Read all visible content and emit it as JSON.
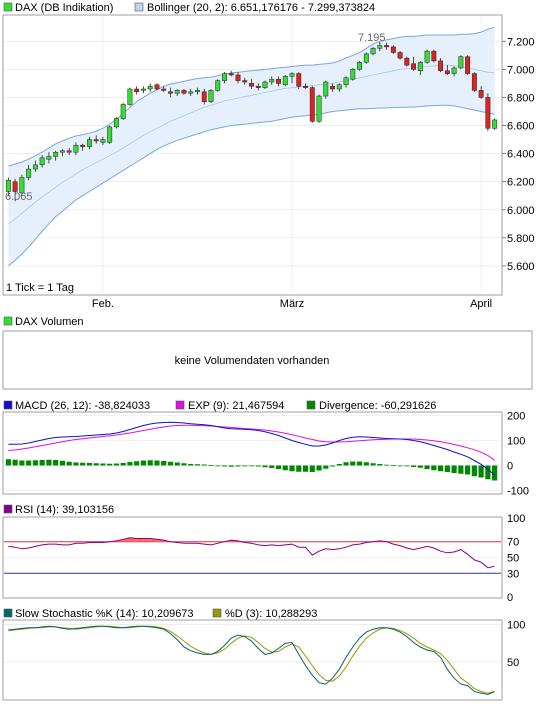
{
  "colors": {
    "up": "#33dd33",
    "down": "#dd2222",
    "bollinger_fill": "#e6f0fc",
    "bollinger_line": "#7aa6dd",
    "bollinger_mid": "#a8c6ee",
    "grid": "#e4e4e4",
    "macd": "#1010cc",
    "exp": "#dd10dd",
    "divergence": "#008800",
    "rsi": "#880088",
    "rsi_70": "#dd3333",
    "rsi_30": "#3333aa",
    "rsi_fill": "#ff6666",
    "stoch_k": "#006666",
    "stoch_d": "#999900"
  },
  "price_panel": {
    "legend_dax": "DAX (DB Indikation)",
    "legend_bollinger": "Bollinger (20, 2): 6.651,176176 - 7.299,373824",
    "tick_note": "1 Tick = 1 Tag",
    "high_label": "7.195",
    "low_label": "6.065",
    "x_labels": [
      "Feb.",
      "März",
      "April"
    ]
  },
  "volume_panel": {
    "legend": "DAX Volumen",
    "message": "keine Volumendaten vorhanden"
  },
  "macd_panel": {
    "legend_macd": "MACD (26, 12): -38,824033",
    "legend_exp": "EXP (9): 21,467594",
    "legend_div": "Divergence: -60,291626"
  },
  "rsi_panel": {
    "legend": "RSI (14): 39,103156"
  },
  "stoch_panel": {
    "legend_k": "Slow Stochastic %K (14): 10,209673",
    "legend_d": "%D (3): 10,288293"
  },
  "chart_data": [
    {
      "type": "candlestick",
      "title": "DAX (DB Indikation)",
      "y_ticks": [
        5600,
        5800,
        6000,
        6200,
        6400,
        6600,
        6800,
        7000,
        7200
      ],
      "y_tick_labels": [
        "5.600",
        "5.800",
        "6.000",
        "6.200",
        "6.400",
        "6.600",
        "6.800",
        "7.000",
        "7.200"
      ],
      "ylim": [
        5400,
        7380
      ],
      "x_tick_labels": [
        "Feb.",
        "März",
        "April"
      ],
      "x_tick_index": [
        14,
        42,
        70
      ],
      "ohlc": [
        [
          6130,
          6230,
          6100,
          6210
        ],
        [
          6200,
          6220,
          6060,
          6130
        ],
        [
          6120,
          6250,
          6100,
          6230
        ],
        [
          6230,
          6320,
          6210,
          6290
        ],
        [
          6290,
          6350,
          6270,
          6320
        ],
        [
          6320,
          6390,
          6300,
          6370
        ],
        [
          6360,
          6410,
          6330,
          6380
        ],
        [
          6380,
          6420,
          6350,
          6410
        ],
        [
          6410,
          6430,
          6380,
          6420
        ],
        [
          6420,
          6440,
          6390,
          6410
        ],
        [
          6410,
          6480,
          6390,
          6460
        ],
        [
          6460,
          6470,
          6420,
          6450
        ],
        [
          6450,
          6520,
          6430,
          6500
        ],
        [
          6500,
          6530,
          6470,
          6490
        ],
        [
          6480,
          6520,
          6460,
          6500
        ],
        [
          6480,
          6600,
          6470,
          6590
        ],
        [
          6590,
          6660,
          6580,
          6650
        ],
        [
          6650,
          6760,
          6640,
          6750
        ],
        [
          6750,
          6870,
          6740,
          6860
        ],
        [
          6860,
          6880,
          6820,
          6840
        ],
        [
          6850,
          6880,
          6830,
          6860
        ],
        [
          6860,
          6900,
          6840,
          6880
        ],
        [
          6890,
          6900,
          6850,
          6860
        ],
        [
          6860,
          6880,
          6840,
          6850
        ],
        [
          6840,
          6870,
          6800,
          6830
        ],
        [
          6830,
          6860,
          6810,
          6850
        ],
        [
          6850,
          6860,
          6820,
          6830
        ],
        [
          6830,
          6860,
          6810,
          6840
        ],
        [
          6840,
          6870,
          6820,
          6850
        ],
        [
          6840,
          6860,
          6750,
          6770
        ],
        [
          6770,
          6860,
          6760,
          6850
        ],
        [
          6850,
          6930,
          6840,
          6920
        ],
        [
          6920,
          6980,
          6900,
          6970
        ],
        [
          6970,
          6990,
          6950,
          6960
        ],
        [
          6960,
          6980,
          6900,
          6920
        ],
        [
          6920,
          6940,
          6890,
          6910
        ],
        [
          6900,
          6930,
          6860,
          6880
        ],
        [
          6880,
          6900,
          6850,
          6870
        ],
        [
          6870,
          6920,
          6860,
          6910
        ],
        [
          6910,
          6950,
          6890,
          6930
        ],
        [
          6930,
          6950,
          6880,
          6900
        ],
        [
          6890,
          6960,
          6880,
          6950
        ],
        [
          6950,
          6980,
          6900,
          6970
        ],
        [
          6970,
          6980,
          6860,
          6880
        ],
        [
          6880,
          6900,
          6860,
          6870
        ],
        [
          6870,
          6880,
          6620,
          6630
        ],
        [
          6630,
          6820,
          6620,
          6810
        ],
        [
          6810,
          6920,
          6790,
          6910
        ],
        [
          6880,
          6900,
          6840,
          6860
        ],
        [
          6860,
          6900,
          6840,
          6890
        ],
        [
          6890,
          6950,
          6870,
          6940
        ],
        [
          6930,
          7010,
          6920,
          7000
        ],
        [
          7000,
          7060,
          6990,
          7050
        ],
        [
          7050,
          7120,
          7040,
          7110
        ],
        [
          7110,
          7160,
          7100,
          7150
        ],
        [
          7150,
          7195,
          7130,
          7170
        ],
        [
          7170,
          7190,
          7140,
          7160
        ],
        [
          7160,
          7170,
          7110,
          7120
        ],
        [
          7120,
          7130,
          7070,
          7080
        ],
        [
          7080,
          7090,
          7020,
          7030
        ],
        [
          7040,
          7090,
          6990,
          7000
        ],
        [
          6990,
          7060,
          6960,
          7050
        ],
        [
          7050,
          7140,
          7040,
          7130
        ],
        [
          7130,
          7140,
          7050,
          7060
        ],
        [
          7060,
          7080,
          6980,
          6990
        ],
        [
          6990,
          7030,
          6960,
          6970
        ],
        [
          6970,
          7020,
          6950,
          7010
        ],
        [
          7010,
          7100,
          7000,
          7090
        ],
        [
          7090,
          7100,
          6960,
          6970
        ],
        [
          6970,
          6980,
          6840,
          6850
        ],
        [
          6850,
          6880,
          6790,
          6800
        ],
        [
          6800,
          6830,
          6560,
          6580
        ],
        [
          6580,
          6650,
          6570,
          6640
        ]
      ],
      "bollinger_upper": [
        6310,
        6325,
        6340,
        6360,
        6385,
        6410,
        6440,
        6470,
        6490,
        6510,
        6525,
        6535,
        6545,
        6560,
        6580,
        6610,
        6645,
        6685,
        6730,
        6770,
        6800,
        6830,
        6855,
        6880,
        6895,
        6905,
        6915,
        6925,
        6935,
        6940,
        6945,
        6955,
        6965,
        6975,
        6980,
        6985,
        6990,
        6995,
        7000,
        7005,
        7010,
        7015,
        7020,
        7025,
        7030,
        7030,
        7035,
        7040,
        7045,
        7060,
        7080,
        7100,
        7120,
        7150,
        7180,
        7200,
        7210,
        7220,
        7230,
        7235,
        7235,
        7240,
        7245,
        7245,
        7245,
        7245,
        7245,
        7250,
        7250,
        7255,
        7265,
        7285,
        7300
      ],
      "bollinger_mid": [
        5900,
        5935,
        5975,
        6015,
        6055,
        6090,
        6125,
        6160,
        6195,
        6225,
        6255,
        6285,
        6310,
        6335,
        6360,
        6385,
        6410,
        6440,
        6470,
        6500,
        6530,
        6555,
        6580,
        6605,
        6630,
        6650,
        6670,
        6690,
        6710,
        6730,
        6745,
        6760,
        6775,
        6785,
        6795,
        6805,
        6815,
        6825,
        6835,
        6845,
        6855,
        6865,
        6870,
        6875,
        6880,
        6885,
        6890,
        6895,
        6900,
        6910,
        6920,
        6930,
        6940,
        6950,
        6960,
        6970,
        6980,
        6990,
        7000,
        7005,
        7010,
        7015,
        7020,
        7025,
        7030,
        7030,
        7025,
        7020,
        7010,
        7000,
        6990,
        6980,
        6975
      ],
      "bollinger_lower": [
        5600,
        5640,
        5685,
        5735,
        5790,
        5845,
        5900,
        5950,
        5990,
        6030,
        6070,
        6100,
        6130,
        6160,
        6190,
        6220,
        6250,
        6280,
        6310,
        6340,
        6370,
        6400,
        6430,
        6455,
        6475,
        6495,
        6510,
        6525,
        6540,
        6555,
        6570,
        6580,
        6590,
        6600,
        6605,
        6610,
        6615,
        6620,
        6625,
        6630,
        6640,
        6650,
        6660,
        6665,
        6670,
        6675,
        6680,
        6690,
        6700,
        6705,
        6710,
        6715,
        6720,
        6720,
        6722,
        6725,
        6725,
        6728,
        6730,
        6730,
        6732,
        6735,
        6740,
        6742,
        6745,
        6745,
        6740,
        6730,
        6720,
        6710,
        6700,
        6690,
        6680
      ]
    },
    {
      "type": "line",
      "title": "MACD (26, 12)",
      "y_ticks": [
        -100,
        0,
        100,
        200
      ],
      "y_tick_labels": [
        "-100",
        "0",
        "100",
        "200"
      ],
      "ylim": [
        -110,
        210
      ],
      "series": [
        {
          "name": "MACD (26, 12)",
          "values": [
            85,
            85,
            86,
            90,
            96,
            102,
            108,
            112,
            114,
            115,
            116,
            118,
            120,
            122,
            124,
            126,
            130,
            136,
            144,
            152,
            160,
            166,
            170,
            172,
            173,
            172,
            170,
            167,
            165,
            163,
            160,
            155,
            150,
            147,
            146,
            145,
            143,
            140,
            135,
            128,
            120,
            110,
            100,
            92,
            85,
            78,
            78,
            82,
            90,
            100,
            108,
            113,
            115,
            114,
            112,
            110,
            108,
            107,
            106,
            104,
            100,
            95,
            88,
            80,
            72,
            64,
            54,
            45,
            35,
            20,
            5,
            -15,
            -38
          ]
        },
        {
          "name": "EXP (9)",
          "values": [
            60,
            62,
            66,
            70,
            75,
            80,
            85,
            90,
            95,
            100,
            104,
            107,
            110,
            113,
            116,
            119,
            122,
            126,
            130,
            135,
            140,
            145,
            150,
            154,
            158,
            160,
            161,
            161,
            160,
            159,
            158,
            156,
            154,
            152,
            150,
            148,
            146,
            144,
            142,
            138,
            134,
            129,
            123,
            117,
            110,
            104,
            98,
            95,
            94,
            94,
            95,
            97,
            99,
            101,
            103,
            104,
            105,
            106,
            106,
            106,
            106,
            104,
            102,
            99,
            95,
            90,
            84,
            78,
            71,
            63,
            53,
            40,
            21
          ]
        },
        {
          "name": "Divergence",
          "values": [
            25,
            23,
            20,
            20,
            21,
            22,
            23,
            22,
            19,
            15,
            12,
            11,
            10,
            9,
            8,
            7,
            8,
            10,
            14,
            17,
            20,
            21,
            20,
            18,
            15,
            12,
            9,
            6,
            5,
            4,
            2,
            -1,
            -4,
            -5,
            -4,
            -3,
            -3,
            -4,
            -7,
            -10,
            -14,
            -19,
            -23,
            -25,
            -25,
            -26,
            -20,
            -13,
            -4,
            6,
            13,
            16,
            16,
            13,
            9,
            6,
            3,
            1,
            0,
            -2,
            -6,
            -9,
            -14,
            -19,
            -23,
            -26,
            -30,
            -33,
            -36,
            -43,
            -48,
            -55,
            -60
          ]
        }
      ]
    },
    {
      "type": "line",
      "title": "RSI (14)",
      "y_ticks": [
        0,
        30,
        50,
        70,
        100
      ],
      "y_tick_labels": [
        "0",
        "30",
        "50",
        "70",
        "100"
      ],
      "ylim": [
        0,
        100
      ],
      "reference_lines": [
        70,
        30
      ],
      "series": [
        {
          "name": "RSI (14)",
          "values": [
            64,
            63,
            61,
            62,
            64,
            66,
            67,
            67,
            66,
            66,
            68,
            68,
            69,
            69,
            69,
            70,
            71,
            73,
            75,
            74,
            74,
            74,
            73,
            72,
            70,
            69,
            68,
            68,
            68,
            67,
            66,
            68,
            70,
            72,
            71,
            69,
            68,
            66,
            65,
            66,
            65,
            66,
            67,
            63,
            63,
            53,
            58,
            61,
            60,
            61,
            63,
            66,
            67,
            69,
            70,
            71,
            70,
            67,
            65,
            62,
            60,
            62,
            64,
            62,
            58,
            56,
            57,
            60,
            54,
            47,
            44,
            37,
            39
          ]
        }
      ]
    },
    {
      "type": "line",
      "title": "Slow Stochastic",
      "y_ticks": [
        50,
        100
      ],
      "y_tick_labels": [
        "50",
        "100"
      ],
      "ylim": [
        0,
        105
      ],
      "series": [
        {
          "name": "Slow Stochastic %K (14)",
          "values": [
            93,
            94,
            95,
            96,
            96,
            97,
            98,
            97,
            95,
            94,
            95,
            96,
            97,
            98,
            98,
            97,
            96,
            96,
            97,
            98,
            98,
            97,
            96,
            94,
            88,
            80,
            70,
            65,
            62,
            60,
            60,
            64,
            72,
            82,
            86,
            84,
            78,
            68,
            60,
            62,
            68,
            75,
            76,
            60,
            45,
            32,
            22,
            20,
            28,
            40,
            56,
            70,
            82,
            90,
            94,
            96,
            96,
            94,
            90,
            84,
            76,
            70,
            66,
            64,
            56,
            40,
            28,
            20,
            18,
            10,
            8,
            6,
            10
          ]
        },
        {
          "name": "%D (3)",
          "values": [
            92,
            93,
            94,
            95,
            96,
            96,
            97,
            97,
            96,
            95,
            94,
            95,
            96,
            97,
            98,
            98,
            97,
            96,
            96,
            97,
            98,
            98,
            97,
            95,
            91,
            85,
            78,
            71,
            66,
            62,
            60,
            62,
            67,
            75,
            82,
            85,
            83,
            76,
            68,
            63,
            64,
            70,
            74,
            70,
            58,
            45,
            33,
            25,
            24,
            31,
            43,
            58,
            71,
            82,
            89,
            94,
            96,
            95,
            92,
            88,
            82,
            75,
            70,
            66,
            61,
            52,
            40,
            28,
            22,
            14,
            10,
            8,
            10
          ]
        }
      ]
    }
  ]
}
